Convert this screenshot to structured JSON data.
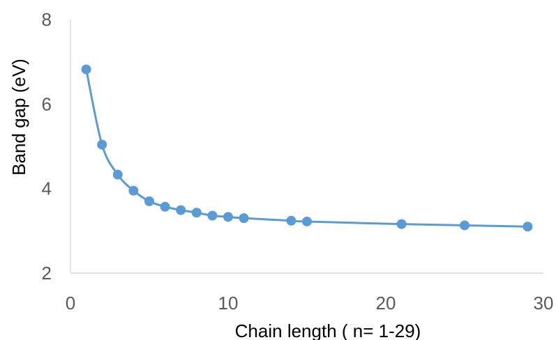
{
  "chart_data": {
    "type": "scatter",
    "title": "",
    "xlabel": "Chain length ( n= 1-29)",
    "ylabel": "Band gap (eV)",
    "xlim": [
      0,
      30
    ],
    "ylim": [
      2,
      8
    ],
    "x_ticks": [
      0,
      10,
      20,
      30
    ],
    "y_ticks": [
      2,
      4,
      6,
      8
    ],
    "grid": false,
    "legend": "none",
    "line_style": "smoothed line with markers",
    "series_color": "#5b9bd5",
    "axis_color": "#d9d9d9",
    "series": [
      {
        "x": [
          1,
          2,
          3,
          4,
          5,
          6,
          7,
          8,
          9,
          10,
          11,
          14,
          15,
          21,
          25,
          29
        ],
        "y": [
          6.82,
          5.04,
          4.33,
          3.95,
          3.7,
          3.57,
          3.49,
          3.43,
          3.36,
          3.33,
          3.3,
          3.24,
          3.22,
          3.16,
          3.13,
          3.1
        ]
      }
    ]
  }
}
